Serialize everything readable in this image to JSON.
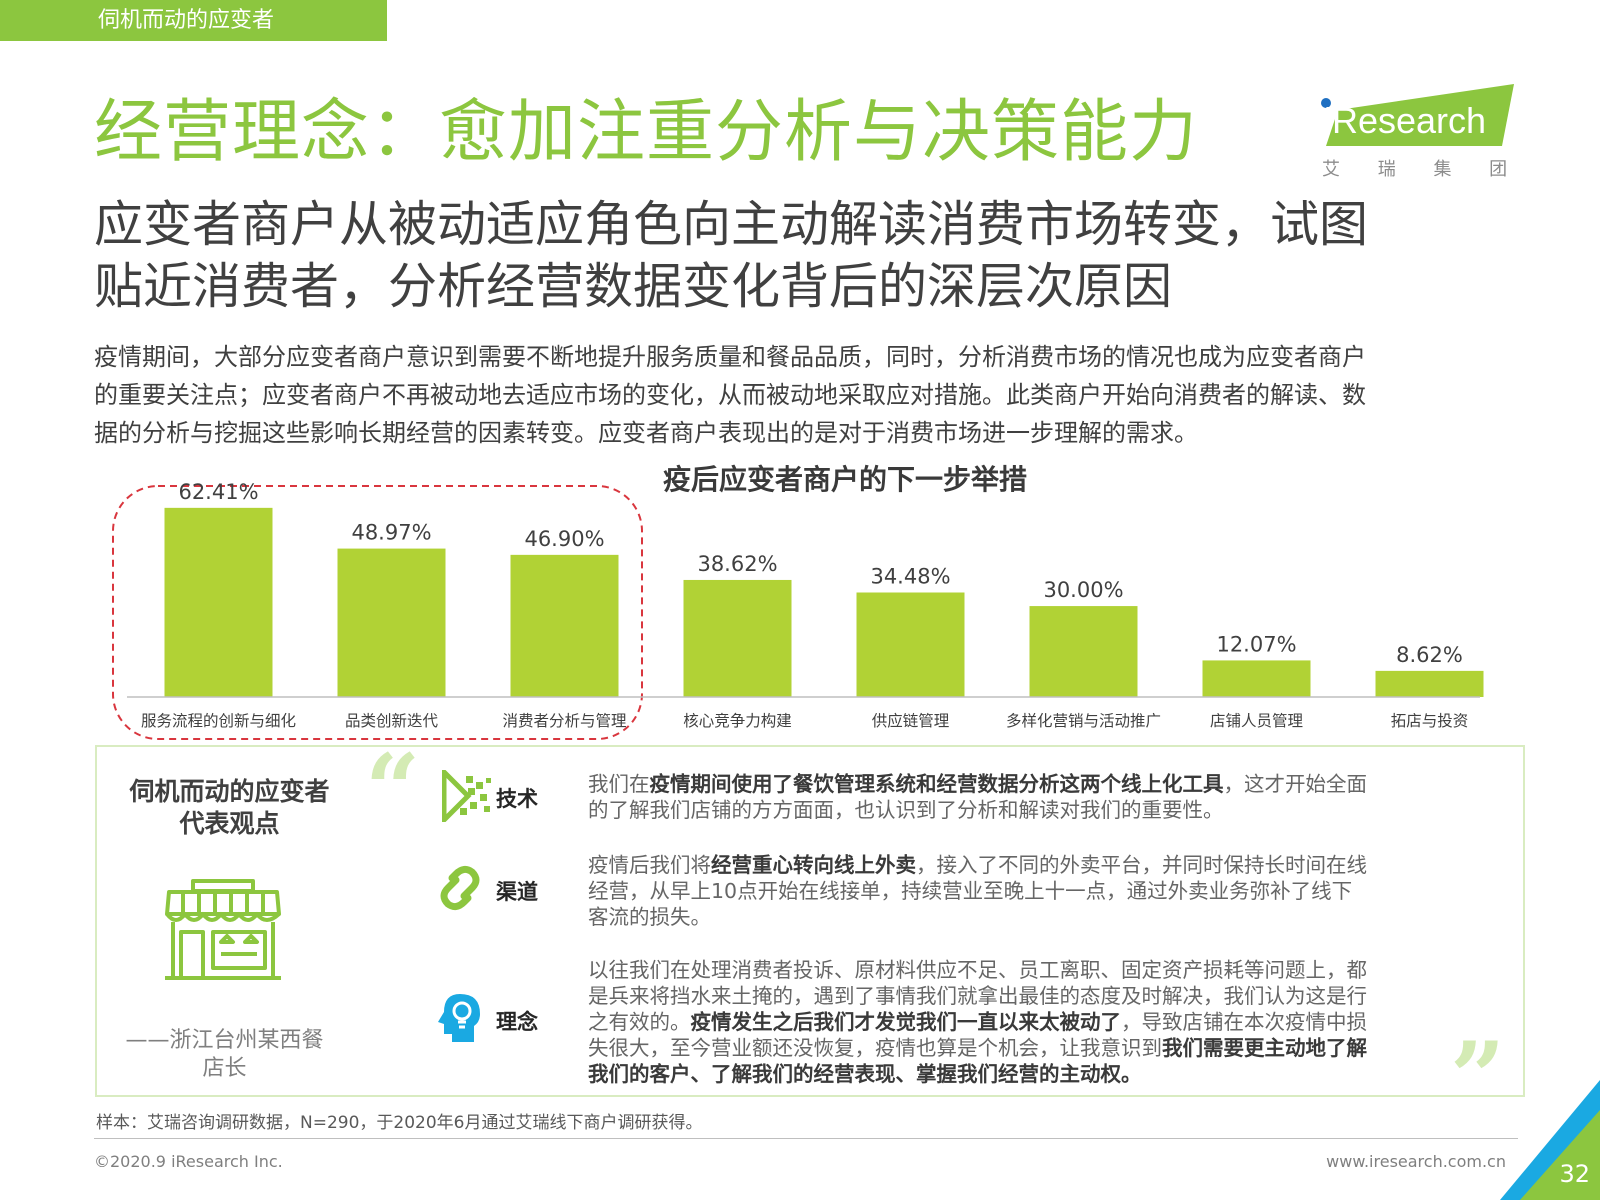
{
  "header": {
    "section_tab": "伺机而动的应变者",
    "title": "经营理念：愈加注重分析与决策能力",
    "subtitle_lines": [
      "应变者商户从被动适应角色向主动解读消费市场转变，试图",
      "贴近消费者，分析经营数据变化背后的深层次原因"
    ]
  },
  "logo": {
    "brand": "iResearch",
    "chinese": "艾 瑞 集 团",
    "color": "#8cc63f"
  },
  "body_lines": [
    "疫情期间，大部分应变者商户意识到需要不断地提升服务质量和餐品品质，同时，分析消费市场的情况也成为应变者商户",
    "的重要关注点；应变者商户不再被动地去适应市场的变化，从而被动地采取应对措施。此类商户开始向消费者的解读、数",
    "据的分析与挖掘这些影响长期经营的因素转变。应变者商户表现出的是对于消费市场进一步理解的需求。"
  ],
  "chart_data": {
    "type": "bar",
    "title": "疫后应变者商户的下一步举措",
    "categories": [
      "服务流程的创新与细化",
      "品类创新迭代",
      "消费者分析与管理",
      "核心竞争力构建",
      "供应链管理",
      "多样化营销与活动推广",
      "店铺人员管理",
      "拓店与投资"
    ],
    "values": [
      62.41,
      48.97,
      46.9,
      38.62,
      34.48,
      30.0,
      12.07,
      8.62
    ],
    "value_labels": [
      "62.41%",
      "48.97%",
      "46.90%",
      "38.62%",
      "34.48%",
      "30.00%",
      "12.07%",
      "8.62%"
    ],
    "bar_color": "#b1d235",
    "highlight": {
      "first_n": 3,
      "style": "red dashed rounded box"
    },
    "ylim": [
      0,
      65
    ],
    "grid": false,
    "xlabel": "",
    "ylabel": ""
  },
  "panel": {
    "heading_lines": [
      "伺机而动的应变者",
      "代表观点"
    ],
    "attribution_lines": [
      "——浙江台州某西餐",
      "店长"
    ],
    "open_quote": "“",
    "close_quote": "”",
    "rows": [
      {
        "icon": "technology-icon",
        "label": "技术",
        "lines": [
          [
            {
              "t": "我们在",
              "b": false
            },
            {
              "t": "疫情期间使用了餐饮管理系统和经营数据分析这两个线上化工具",
              "b": true
            },
            {
              "t": "，这才开始全面",
              "b": false
            }
          ],
          [
            {
              "t": "的了解我们店铺的方方面面，也认识到了分析和解读对我们的重要性。",
              "b": false
            }
          ]
        ]
      },
      {
        "icon": "channel-link-icon",
        "label": "渠道",
        "lines": [
          [
            {
              "t": "疫情后我们将",
              "b": false
            },
            {
              "t": "经营重心转向线上外卖",
              "b": true
            },
            {
              "t": "，接入了不同的外卖平台，并同时保持长时间在线",
              "b": false
            }
          ],
          [
            {
              "t": "经营，从早上10点开始在线接单，持续营业至晚上十一点，通过外卖业务弥补了线下",
              "b": false
            }
          ],
          [
            {
              "t": "客流的损失。",
              "b": false
            }
          ]
        ]
      },
      {
        "icon": "idea-head-icon",
        "label": "理念",
        "lines": [
          [
            {
              "t": "以往我们在处理消费者投诉、原材料供应不足、员工离职、固定资产损耗等问题上，都",
              "b": false
            }
          ],
          [
            {
              "t": "是兵来将挡水来土掩的，遇到了事情我们就拿出最佳的态度及时解决，我们认为这是行",
              "b": false
            }
          ],
          [
            {
              "t": "之有效的。",
              "b": false
            },
            {
              "t": "疫情发生之后我们才发觉我们一直以来太被动了",
              "b": true
            },
            {
              "t": "，导致店铺在本次疫情中损",
              "b": false
            }
          ],
          [
            {
              "t": "失很大，至今营业额还没恢复，疫情也算是个机会，让我意识到",
              "b": false
            },
            {
              "t": "我们需要更主动地了解",
              "b": true
            }
          ],
          [
            {
              "t": "我们的客户、了解我们的经营表现、掌握我们经营的主动权。",
              "b": true
            }
          ]
        ]
      }
    ]
  },
  "footer": {
    "source_note": "样本：艾瑞咨询调研数据，N=290，于2020年6月通过艾瑞线下商户调研获得。",
    "copyright": "©2020.9 iResearch Inc.",
    "website": "www.iresearch.com.cn",
    "page_number": "32"
  }
}
